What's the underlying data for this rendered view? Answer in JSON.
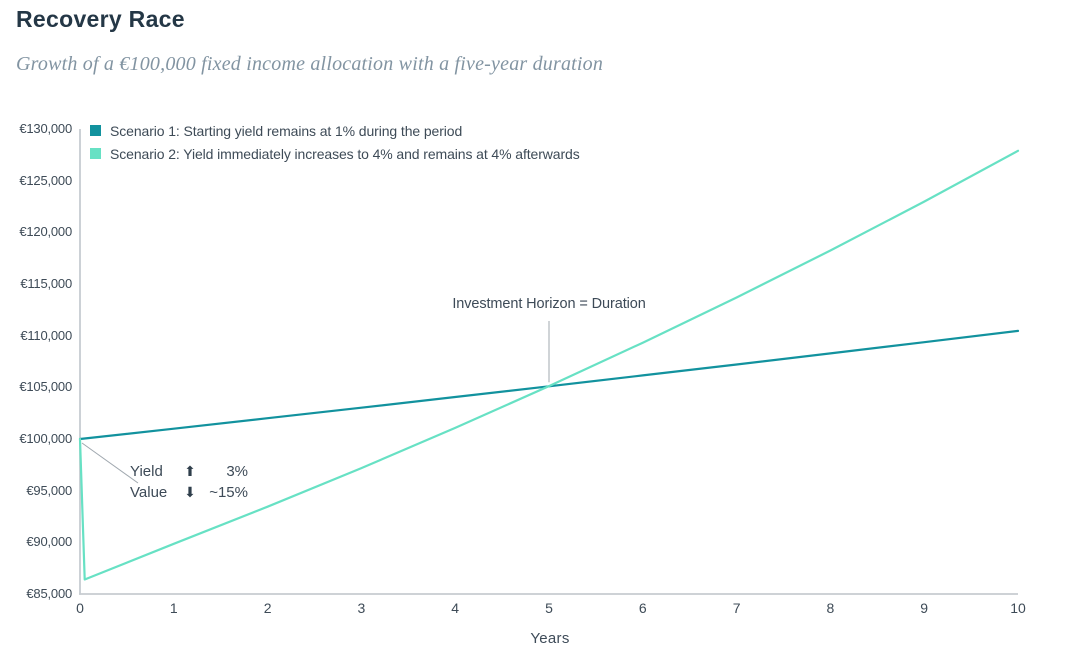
{
  "page": {
    "title": "Recovery Race",
    "subtitle": "Growth of a €100,000 fixed income allocation with a five-year duration"
  },
  "icons": {
    "up_arrow": "⬆",
    "down_arrow": "⬇"
  },
  "colors": {
    "scenario1": "#12929e",
    "scenario2": "#67e1c4",
    "axis": "#c7ccd1",
    "connector": "#a0a8af",
    "title_text": "#243746",
    "subtitle_text": "#8294a2",
    "label_text": "#3e4b57"
  },
  "chart_data": {
    "type": "line",
    "title": "Recovery Race",
    "subtitle": "Growth of a €100,000 fixed income allocation with a five-year duration",
    "xlabel": "Years",
    "ylabel": "",
    "xlim": [
      0,
      10
    ],
    "ylim": [
      85000,
      130000
    ],
    "grid": false,
    "legend_position": "top-left-inside",
    "x_ticks": [
      0,
      1,
      2,
      3,
      4,
      5,
      6,
      7,
      8,
      9,
      10
    ],
    "y_ticks": [
      {
        "value": 130000,
        "label": "€130,000"
      },
      {
        "value": 125000,
        "label": "€125,000"
      },
      {
        "value": 120000,
        "label": "€120,000"
      },
      {
        "value": 115000,
        "label": "€115,000"
      },
      {
        "value": 110000,
        "label": "€110,000"
      },
      {
        "value": 105000,
        "label": "€105,000"
      },
      {
        "value": 100000,
        "label": "€100,000"
      },
      {
        "value": 95000,
        "label": "€95,000"
      },
      {
        "value": 90000,
        "label": "€90,000"
      },
      {
        "value": 85000,
        "label": "€85,000"
      }
    ],
    "series": [
      {
        "name": "scenario-1",
        "label": "Scenario 1: Starting yield remains at 1% during the period",
        "color": "#12929e",
        "points": [
          [
            0,
            100000
          ],
          [
            1,
            101000
          ],
          [
            2,
            102010
          ],
          [
            3,
            103030
          ],
          [
            4,
            104060
          ],
          [
            5,
            105101
          ],
          [
            6,
            106152
          ],
          [
            7,
            107214
          ],
          [
            8,
            108286
          ],
          [
            9,
            109369
          ],
          [
            10,
            110462
          ]
        ]
      },
      {
        "name": "scenario-2",
        "label": "Scenario 2: Yield immediately increases to 4% and remains at 4% afterwards",
        "color": "#67e1c4",
        "points": [
          [
            0,
            100000
          ],
          [
            0.05,
            86400
          ],
          [
            1,
            89856
          ],
          [
            2,
            93450
          ],
          [
            3,
            97188
          ],
          [
            4,
            101076
          ],
          [
            5,
            105119
          ],
          [
            6,
            109324
          ],
          [
            7,
            113697
          ],
          [
            8,
            118245
          ],
          [
            9,
            122975
          ],
          [
            10,
            127894
          ]
        ]
      }
    ],
    "annotations": {
      "horizon": {
        "text": "Investment Horizon = Duration",
        "anchor_x": 5,
        "anchor_y": 105101
      },
      "shock": {
        "anchor_x": 0,
        "anchor_y": 100000,
        "rows": [
          {
            "label": "Yield",
            "arrow": "up",
            "value": "3%"
          },
          {
            "label": "Value",
            "arrow": "down",
            "value": "~15%"
          }
        ]
      }
    }
  }
}
